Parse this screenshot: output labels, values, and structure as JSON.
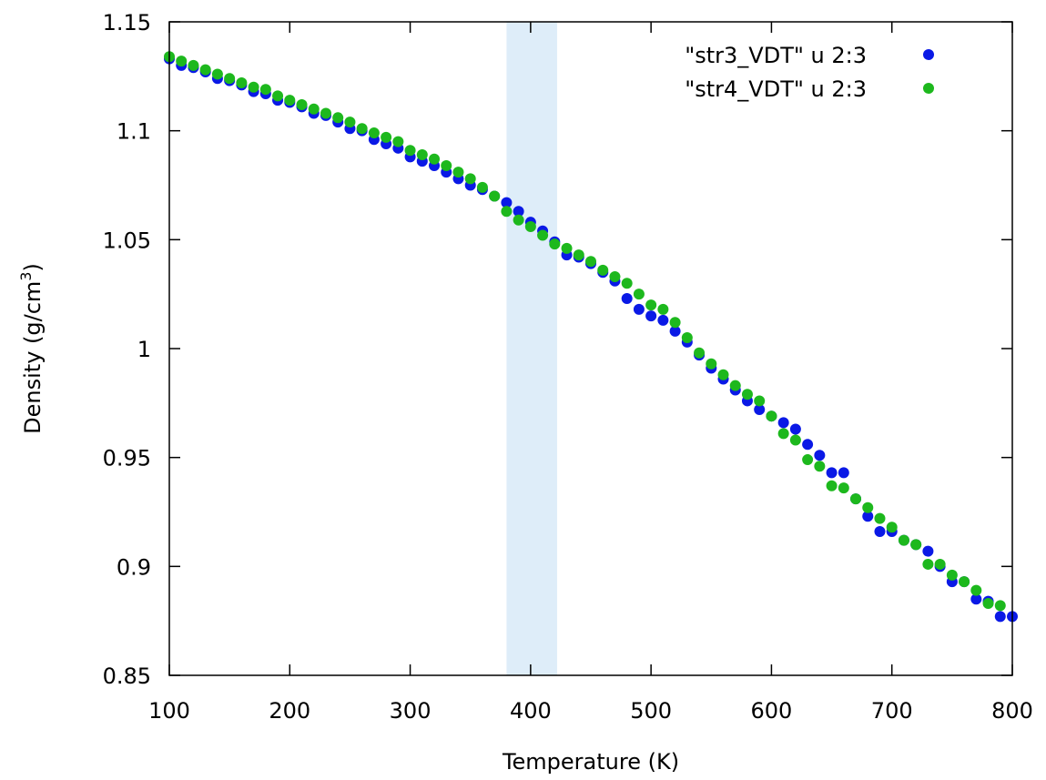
{
  "chart_data": {
    "type": "scatter",
    "xlabel": "Temperature (K)",
    "ylabel": "Density (g/cm3)",
    "ylabel_main": "Density (g/cm",
    "ylabel_sup": "3",
    "ylabel_end": ")",
    "xlim": [
      100,
      800
    ],
    "ylim": [
      0.85,
      1.15
    ],
    "x_ticks": [
      100,
      200,
      300,
      400,
      500,
      600,
      700,
      800
    ],
    "x_tick_labels": [
      "100",
      "200",
      "300",
      "400",
      "500",
      "600",
      "700",
      "800"
    ],
    "y_ticks": [
      0.85,
      0.9,
      0.95,
      1.0,
      1.05,
      1.1,
      1.15
    ],
    "y_tick_labels": [
      "0.85",
      "0.9",
      "0.95",
      "1",
      "1.05",
      "1.1",
      "1.15"
    ],
    "grid": false,
    "legend_position": "top-right",
    "highlight_band": {
      "x_range": [
        380,
        422
      ],
      "color": "#deedf9"
    },
    "series": [
      {
        "name": "\"str3_VDT\" u 2:3",
        "color": "#0a19e6",
        "points": [
          [
            100,
            1.133
          ],
          [
            110,
            1.13
          ],
          [
            120,
            1.129
          ],
          [
            130,
            1.127
          ],
          [
            140,
            1.124
          ],
          [
            150,
            1.123
          ],
          [
            160,
            1.121
          ],
          [
            170,
            1.118
          ],
          [
            180,
            1.117
          ],
          [
            190,
            1.114
          ],
          [
            200,
            1.113
          ],
          [
            210,
            1.111
          ],
          [
            220,
            1.108
          ],
          [
            230,
            1.107
          ],
          [
            240,
            1.104
          ],
          [
            250,
            1.101
          ],
          [
            260,
            1.1
          ],
          [
            270,
            1.096
          ],
          [
            280,
            1.094
          ],
          [
            290,
            1.092
          ],
          [
            300,
            1.088
          ],
          [
            310,
            1.086
          ],
          [
            320,
            1.084
          ],
          [
            330,
            1.081
          ],
          [
            340,
            1.078
          ],
          [
            350,
            1.075
          ],
          [
            360,
            1.073
          ],
          [
            370,
            1.07
          ],
          [
            380,
            1.067
          ],
          [
            390,
            1.063
          ],
          [
            400,
            1.058
          ],
          [
            410,
            1.054
          ],
          [
            420,
            1.049
          ],
          [
            430,
            1.043
          ],
          [
            440,
            1.042
          ],
          [
            450,
            1.039
          ],
          [
            460,
            1.035
          ],
          [
            470,
            1.031
          ],
          [
            480,
            1.023
          ],
          [
            490,
            1.018
          ],
          [
            500,
            1.015
          ],
          [
            510,
            1.013
          ],
          [
            520,
            1.008
          ],
          [
            530,
            1.003
          ],
          [
            540,
            0.997
          ],
          [
            550,
            0.991
          ],
          [
            560,
            0.986
          ],
          [
            570,
            0.981
          ],
          [
            580,
            0.976
          ],
          [
            590,
            0.972
          ],
          [
            600,
            0.969
          ],
          [
            610,
            0.966
          ],
          [
            620,
            0.963
          ],
          [
            630,
            0.956
          ],
          [
            640,
            0.951
          ],
          [
            650,
            0.943
          ],
          [
            660,
            0.943
          ],
          [
            670,
            0.931
          ],
          [
            680,
            0.923
          ],
          [
            690,
            0.916
          ],
          [
            700,
            0.916
          ],
          [
            710,
            0.912
          ],
          [
            720,
            0.91
          ],
          [
            730,
            0.907
          ],
          [
            740,
            0.9
          ],
          [
            750,
            0.893
          ],
          [
            760,
            0.893
          ],
          [
            770,
            0.885
          ],
          [
            780,
            0.884
          ],
          [
            790,
            0.877
          ],
          [
            800,
            0.877
          ]
        ]
      },
      {
        "name": "\"str4_VDT\" u 2:3",
        "color": "#1db81d",
        "points": [
          [
            100,
            1.134
          ],
          [
            110,
            1.132
          ],
          [
            120,
            1.13
          ],
          [
            130,
            1.128
          ],
          [
            140,
            1.126
          ],
          [
            150,
            1.124
          ],
          [
            160,
            1.122
          ],
          [
            170,
            1.12
          ],
          [
            180,
            1.119
          ],
          [
            190,
            1.116
          ],
          [
            200,
            1.114
          ],
          [
            210,
            1.112
          ],
          [
            220,
            1.11
          ],
          [
            230,
            1.108
          ],
          [
            240,
            1.106
          ],
          [
            250,
            1.104
          ],
          [
            260,
            1.101
          ],
          [
            270,
            1.099
          ],
          [
            280,
            1.097
          ],
          [
            290,
            1.095
          ],
          [
            300,
            1.091
          ],
          [
            310,
            1.089
          ],
          [
            320,
            1.087
          ],
          [
            330,
            1.084
          ],
          [
            340,
            1.081
          ],
          [
            350,
            1.078
          ],
          [
            360,
            1.074
          ],
          [
            370,
            1.07
          ],
          [
            380,
            1.063
          ],
          [
            390,
            1.059
          ],
          [
            400,
            1.056
          ],
          [
            410,
            1.052
          ],
          [
            420,
            1.048
          ],
          [
            430,
            1.046
          ],
          [
            440,
            1.043
          ],
          [
            450,
            1.04
          ],
          [
            460,
            1.036
          ],
          [
            470,
            1.033
          ],
          [
            480,
            1.03
          ],
          [
            490,
            1.025
          ],
          [
            500,
            1.02
          ],
          [
            510,
            1.018
          ],
          [
            520,
            1.012
          ],
          [
            530,
            1.005
          ],
          [
            540,
            0.998
          ],
          [
            550,
            0.993
          ],
          [
            560,
            0.988
          ],
          [
            570,
            0.983
          ],
          [
            580,
            0.979
          ],
          [
            590,
            0.976
          ],
          [
            600,
            0.969
          ],
          [
            610,
            0.961
          ],
          [
            620,
            0.958
          ],
          [
            630,
            0.949
          ],
          [
            640,
            0.946
          ],
          [
            650,
            0.937
          ],
          [
            660,
            0.936
          ],
          [
            670,
            0.931
          ],
          [
            680,
            0.927
          ],
          [
            690,
            0.922
          ],
          [
            700,
            0.918
          ],
          [
            710,
            0.912
          ],
          [
            720,
            0.91
          ],
          [
            730,
            0.901
          ],
          [
            740,
            0.901
          ],
          [
            750,
            0.896
          ],
          [
            760,
            0.893
          ],
          [
            770,
            0.889
          ],
          [
            780,
            0.883
          ],
          [
            790,
            0.882
          ]
        ]
      }
    ]
  }
}
